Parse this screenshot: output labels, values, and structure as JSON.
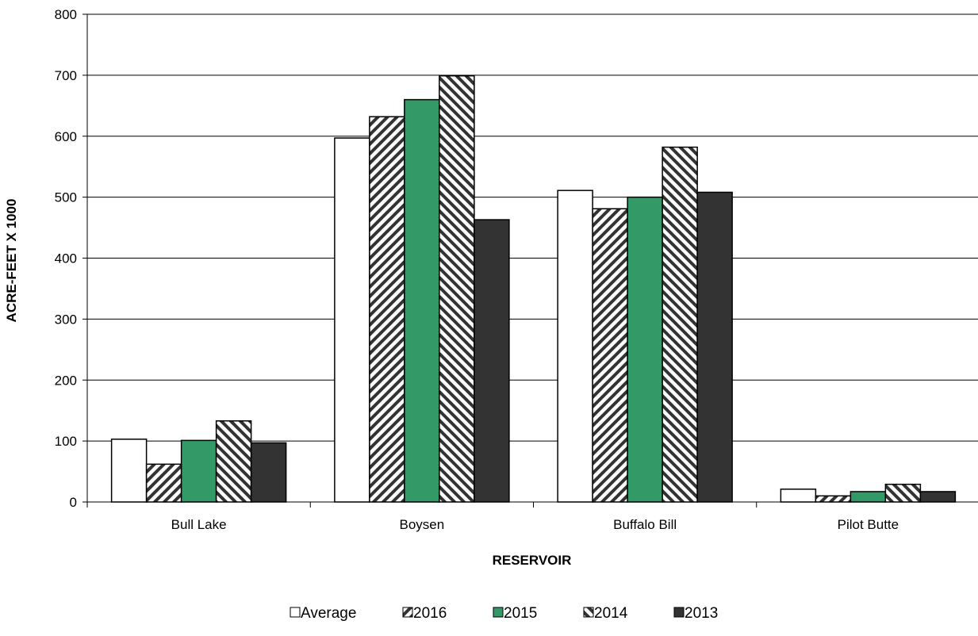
{
  "chart_data": {
    "type": "bar",
    "title": "",
    "xlabel": "RESERVOIR",
    "ylabel": "ACRE-FEET X 1000",
    "ylim": [
      0,
      800
    ],
    "yticks": [
      "0",
      "100",
      "200",
      "300",
      "400",
      "500",
      "600",
      "700",
      "800"
    ],
    "grid": true,
    "legend_position": "bottom",
    "categories": [
      "Bull Lake",
      "Boysen",
      "Buffalo Bill",
      "Pilot Butte"
    ],
    "series": [
      {
        "name": "Average",
        "values": [
          103,
          597,
          511,
          21
        ],
        "fill": "solid",
        "color": "#ffffff"
      },
      {
        "name": "2016",
        "values": [
          62,
          632,
          481,
          10
        ],
        "fill": "hatch-up",
        "color": "#333333"
      },
      {
        "name": "2015",
        "values": [
          101,
          660,
          500,
          17
        ],
        "fill": "solid",
        "color": "#339966"
      },
      {
        "name": "2014",
        "values": [
          133,
          699,
          582,
          29
        ],
        "fill": "hatch-down",
        "color": "#333333"
      },
      {
        "name": "2013",
        "values": [
          97,
          463,
          508,
          17
        ],
        "fill": "solid",
        "color": "#333333"
      }
    ]
  }
}
